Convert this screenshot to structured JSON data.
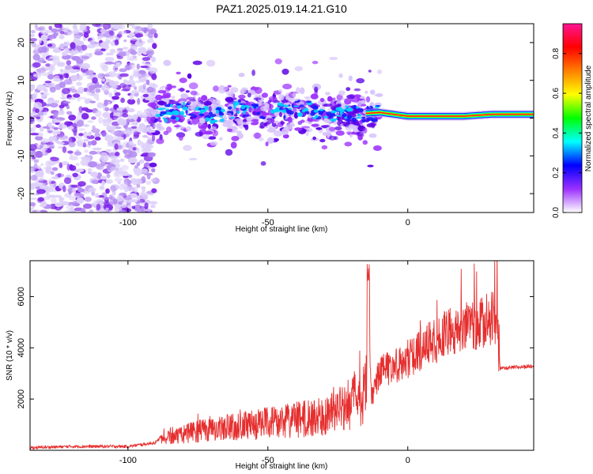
{
  "title": "PAZ1.2025.019.14.21.G10",
  "chart_data": [
    {
      "type": "heatmap",
      "name": "spectrogram",
      "xlabel": "Height of straight line (km)",
      "ylabel": "Frequency (Hz)",
      "xlim": [
        -135,
        45
      ],
      "ylim": [
        -25,
        25
      ],
      "xticks": [
        -100,
        -50,
        0
      ],
      "yticks": [
        -20,
        -10,
        0,
        10,
        20
      ],
      "ridge": [
        {
          "x": -90,
          "y": 1.0
        },
        {
          "x": -80,
          "y": 2.0
        },
        {
          "x": -70,
          "y": 0.5
        },
        {
          "x": -60,
          "y": 2.5
        },
        {
          "x": -50,
          "y": 1.0
        },
        {
          "x": -40,
          "y": 3.0
        },
        {
          "x": -30,
          "y": 1.5
        },
        {
          "x": -20,
          "y": 1.0
        },
        {
          "x": -10,
          "y": 1.5
        },
        {
          "x": 0,
          "y": 0.5
        },
        {
          "x": 10,
          "y": 0.5
        },
        {
          "x": 20,
          "y": 0.5
        },
        {
          "x": 30,
          "y": 1.0
        },
        {
          "x": 45,
          "y": 1.0
        }
      ],
      "colorbar": {
        "label": "Normalized spectral amplitude",
        "range": [
          0.0,
          0.95
        ],
        "ticks": [
          "0.0",
          "0.2",
          "0.4",
          "0.6",
          "0.8"
        ],
        "colors": [
          "#ffffff",
          "#9b30ff",
          "#0000ff",
          "#00ffff",
          "#00ff00",
          "#ffff00",
          "#ff7f00",
          "#ff0000",
          "#ff1493"
        ]
      }
    },
    {
      "type": "line",
      "name": "snr",
      "xlabel": "Height of straight line (km)",
      "ylabel": "SNR (10 * v/v)",
      "xlim": [
        -135,
        45
      ],
      "ylim": [
        0,
        7400
      ],
      "xticks": [
        -100,
        -50,
        0
      ],
      "yticks": [
        2000,
        4000,
        6000
      ],
      "color": "#e62e2e",
      "series": [
        {
          "name": "SNR",
          "x": [
            -135,
            -120,
            -100,
            -90,
            -87,
            -85,
            -80,
            -75,
            -70,
            -65,
            -60,
            -55,
            -50,
            -45,
            -40,
            -35,
            -30,
            -25,
            -20,
            -15,
            -14,
            -13,
            -10,
            -5,
            0,
            5,
            10,
            15,
            20,
            25,
            30,
            32,
            33,
            35,
            40,
            45
          ],
          "y": [
            100,
            150,
            150,
            300,
            700,
            900,
            1000,
            1200,
            1300,
            1400,
            1500,
            1600,
            1700,
            1800,
            1900,
            2000,
            2100,
            2500,
            2900,
            3500,
            7300,
            2500,
            3700,
            4000,
            4300,
            4800,
            5200,
            5600,
            5900,
            6000,
            6200,
            6200,
            3200,
            3200,
            3250,
            3300
          ]
        }
      ]
    }
  ]
}
